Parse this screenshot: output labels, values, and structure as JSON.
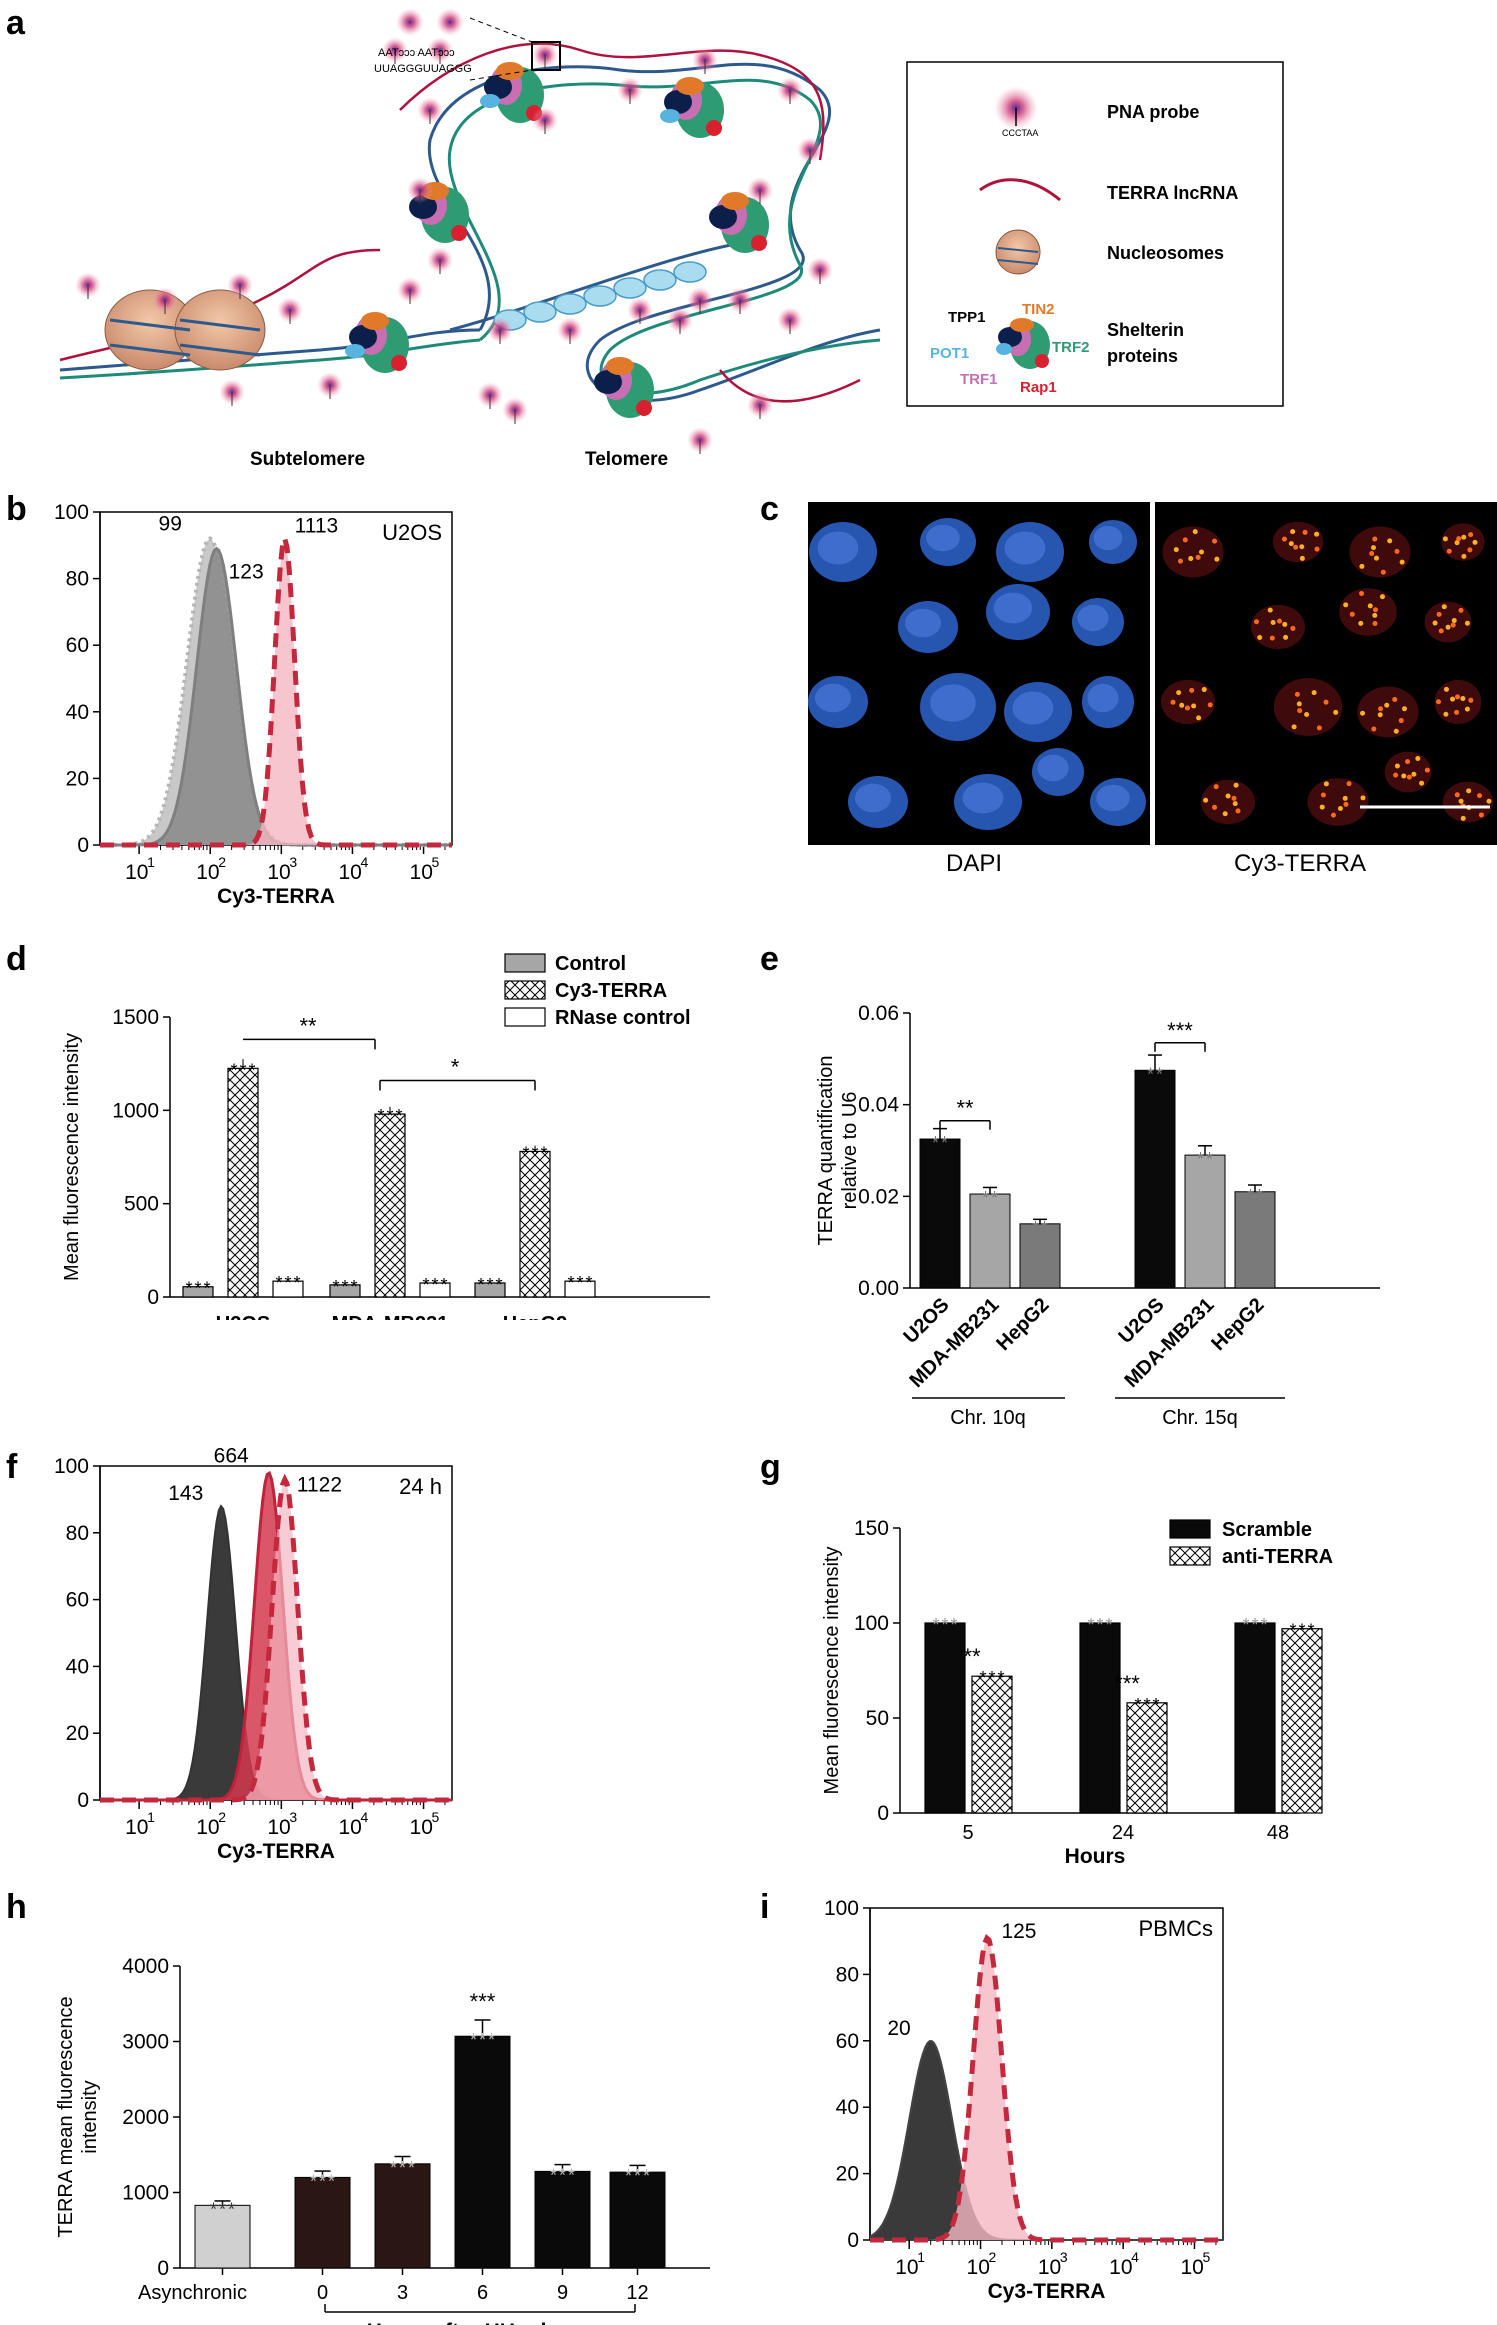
{
  "panel_labels": [
    "a",
    "b",
    "c",
    "d",
    "e",
    "f",
    "g",
    "h",
    "i"
  ],
  "schematic": {
    "sequence_top": "AATɔɔɔ AATɔɔɔ",
    "sequence_bottom": "UUAGGGUUAGGG",
    "region_subtelomere": "Subtelomere",
    "region_telomere": "Telomere",
    "legend": {
      "pna_probe": "PNA probe",
      "probe_seq": "CCCTAA",
      "terra": "TERRA lncRNA",
      "nucleosomes": "Nucleosomes",
      "shelterin_line1": "Shelterin",
      "shelterin_line2": "proteins",
      "tpp1": "TPP1",
      "tin2": "TIN2",
      "pot1": "POT1",
      "trf2": "TRF2",
      "trf1": "TRF1",
      "rap1": "Rap1"
    },
    "colors": {
      "tpp1": "#0b1f4a",
      "tin2": "#e07a2a",
      "pot1": "#57b3e0",
      "trf2": "#2e9b72",
      "trf1": "#c86fb4",
      "rap1": "#d8202e",
      "terra": "#b0123e"
    }
  },
  "microscopy": {
    "label_left": "DAPI",
    "label_right": "Cy3-TERRA"
  },
  "chart_data": [
    {
      "id": "b",
      "type": "area",
      "title": "U2OS",
      "xlabel": "Cy3-TERRA",
      "x_scale": "log",
      "xticks": [
        "10",
        "10",
        "10",
        "10",
        "10"
      ],
      "xtick_exp": [
        "1",
        "2",
        "3",
        "4",
        "5"
      ],
      "yticks": [
        "0",
        "20",
        "40",
        "60",
        "80",
        "100"
      ],
      "ylim": [
        0,
        100
      ],
      "series": [
        {
          "peak_value": 99,
          "style": "gray-dotted",
          "color": "#b5b5b5"
        },
        {
          "peak_value": 123,
          "style": "dark-gray-solid",
          "color": "#7f7f7f"
        },
        {
          "peak_value": 1113,
          "style": "pink-dashed",
          "color": "#c4283c"
        }
      ],
      "annotations": [
        "99",
        "123",
        "1113"
      ]
    },
    {
      "id": "d",
      "type": "bar",
      "ylabel": "Mean fluorescence intensity",
      "categories": [
        "U2OS",
        "MDA-MB231",
        "HepG2"
      ],
      "yticks": [
        "0",
        "500",
        "1000",
        "1500"
      ],
      "ylim": [
        0,
        1500
      ],
      "series": [
        {
          "name": "Control",
          "values": [
            55,
            65,
            75
          ],
          "color": "#a6a6a6",
          "pattern": "solid"
        },
        {
          "name": "Cy3-TERRA",
          "values": [
            1225,
            980,
            780
          ],
          "color": "#ffffff",
          "pattern": "crosshatch"
        },
        {
          "name": "RNase control",
          "values": [
            85,
            75,
            85
          ],
          "color": "#ffffff",
          "pattern": "open"
        }
      ],
      "significance": [
        "**",
        "*"
      ]
    },
    {
      "id": "e",
      "type": "bar",
      "ylabel_line1": "TERRA quantification",
      "ylabel_line2": "relative to U6",
      "categories": [
        "U2OS",
        "MDA-MB231",
        "HepG2",
        "U2OS",
        "MDA-MB231",
        "HepG2"
      ],
      "groups": [
        "Chr. 10q",
        "Chr. 15q"
      ],
      "yticks": [
        "0.00",
        "0.02",
        "0.04",
        "0.06"
      ],
      "ylim": [
        0,
        0.06
      ],
      "values": [
        0.0325,
        0.0205,
        0.014,
        0.0475,
        0.029,
        0.021
      ],
      "colors": [
        "#0a0a0a",
        "#a6a6a6",
        "#7a7a7a",
        "#0a0a0a",
        "#a6a6a6",
        "#7a7a7a"
      ],
      "significance": [
        "**",
        "***"
      ]
    },
    {
      "id": "f",
      "type": "area",
      "title": "24 h",
      "xlabel": "Cy3-TERRA",
      "x_scale": "log",
      "xticks": [
        "10",
        "10",
        "10",
        "10",
        "10"
      ],
      "xtick_exp": [
        "1",
        "2",
        "3",
        "4",
        "5"
      ],
      "yticks": [
        "0",
        "20",
        "40",
        "60",
        "80",
        "100"
      ],
      "ylim": [
        0,
        100
      ],
      "series": [
        {
          "peak_value": 143,
          "style": "dark-solid",
          "color": "#333333"
        },
        {
          "peak_value": 664,
          "style": "red-solid",
          "color": "#c4203a"
        },
        {
          "peak_value": 1122,
          "style": "pink-dashed",
          "color": "#c4283c"
        }
      ],
      "annotations": [
        "143",
        "664",
        "1122"
      ]
    },
    {
      "id": "g",
      "type": "bar",
      "ylabel": "Mean fluorescence intensity",
      "xlabel": "Hours",
      "categories": [
        "5",
        "24",
        "48"
      ],
      "yticks": [
        "0",
        "50",
        "100",
        "150"
      ],
      "ylim": [
        0,
        150
      ],
      "series": [
        {
          "name": "Scramble",
          "values": [
            100,
            100,
            100
          ],
          "color": "#0a0a0a",
          "pattern": "solid"
        },
        {
          "name": "anti-TERRA",
          "values": [
            72,
            58,
            97
          ],
          "color": "#ffffff",
          "pattern": "crosshatch"
        }
      ],
      "significance": [
        "**",
        "***"
      ]
    },
    {
      "id": "h",
      "type": "bar",
      "ylabel_line1": "TERRA mean fluorescence",
      "ylabel_line2": "intensity",
      "xlabel": "Hours after HU release",
      "categories": [
        "Asynchronic",
        "0",
        "3",
        "6",
        "9",
        "12"
      ],
      "yticks": [
        "0",
        "1000",
        "2000",
        "3000",
        "4000"
      ],
      "ylim": [
        0,
        4000
      ],
      "values": [
        830,
        1200,
        1380,
        3070,
        1280,
        1270
      ],
      "colors": [
        "#d0d0d0",
        "#2a1612",
        "#2a1612",
        "#0a0a0a",
        "#0a0a0a",
        "#0a0a0a"
      ],
      "significance": [
        "***"
      ]
    },
    {
      "id": "i",
      "type": "area",
      "title": "PBMCs",
      "xlabel": "Cy3-TERRA",
      "x_scale": "log",
      "xticks": [
        "10",
        "10",
        "10",
        "10",
        "10"
      ],
      "xtick_exp": [
        "1",
        "2",
        "3",
        "4",
        "5"
      ],
      "yticks": [
        "0",
        "20",
        "40",
        "60",
        "80",
        "100"
      ],
      "ylim": [
        0,
        100
      ],
      "series": [
        {
          "peak_value": 20,
          "style": "dark-solid",
          "color": "#444444"
        },
        {
          "peak_value": 125,
          "style": "pink-dashed",
          "color": "#c4283c"
        }
      ],
      "annotations": [
        "20",
        "125"
      ]
    }
  ]
}
